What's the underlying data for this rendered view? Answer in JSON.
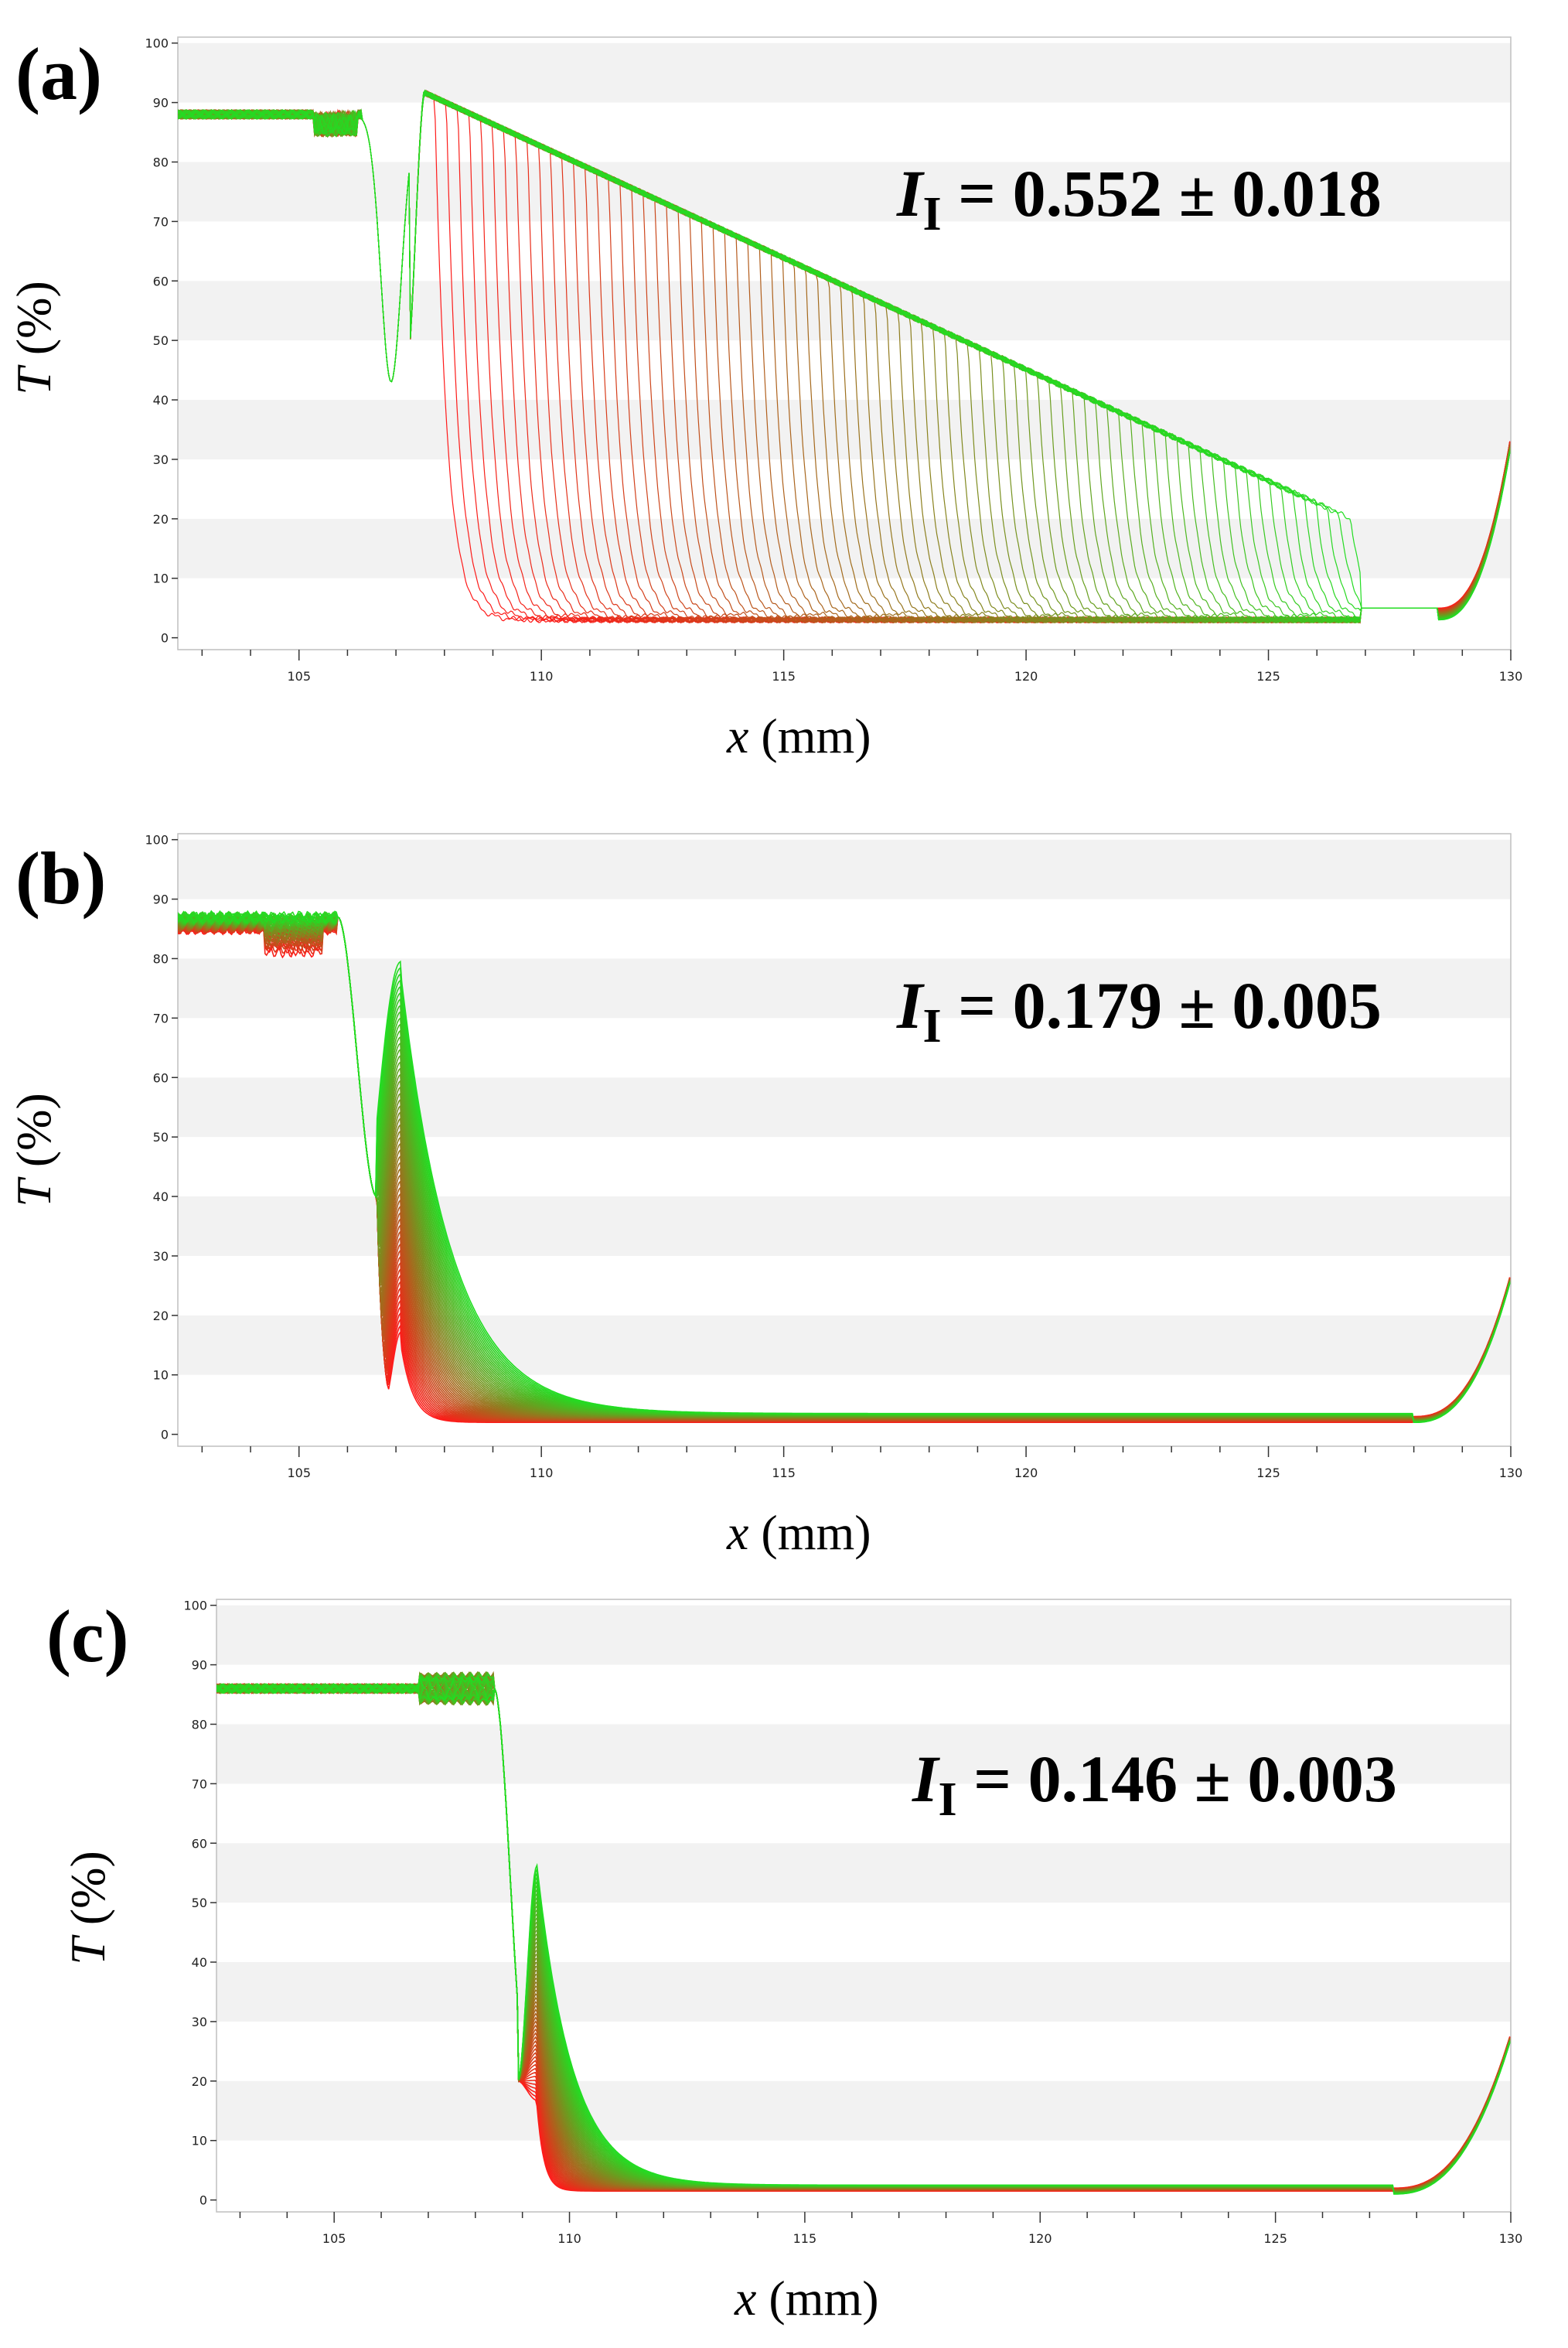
{
  "chart_data": [
    {
      "type": "line",
      "panel": "(a)",
      "xlabel_var": "x",
      "xlabel_unit": "(mm)",
      "ylabel_var": "T",
      "ylabel_unit": "(%)",
      "xlim": [
        102.5,
        130
      ],
      "ylim": [
        -2,
        101
      ],
      "xticks": [
        105,
        110,
        115,
        120,
        125,
        130
      ],
      "yticks": [
        0,
        10,
        20,
        30,
        40,
        50,
        60,
        70,
        80,
        90,
        100
      ],
      "annotation_symbol": "I",
      "annotation_sub": "I",
      "annotation_value": "= 0.552 ± 0.018",
      "series_count": 80,
      "color_start": "#ff1a1a",
      "color_end": "#22dd22",
      "profile": {
        "plateau": 88,
        "dip_x": 106.9,
        "dip_min": 43,
        "front_start_x": 107.6,
        "front_end_x": 126.7,
        "peak": 92,
        "tail_level": 20,
        "baseline": 3,
        "rise_start_x": 128.5,
        "end_value": 34
      }
    },
    {
      "type": "line",
      "panel": "(b)",
      "xlabel_var": "x",
      "xlabel_unit": "(mm)",
      "ylabel_var": "T",
      "ylabel_unit": "(%)",
      "xlim": [
        102.5,
        130
      ],
      "ylim": [
        -2,
        101
      ],
      "xticks": [
        105,
        110,
        115,
        120,
        125,
        130
      ],
      "yticks": [
        0,
        10,
        20,
        30,
        40,
        50,
        60,
        70,
        80,
        90,
        100
      ],
      "annotation_symbol": "I",
      "annotation_sub": "I",
      "annotation_value": "= 0.179 ± 0.005",
      "series_count": 60,
      "color_start": "#ff1a1a",
      "color_end": "#22dd22",
      "profile": {
        "plateau": 87,
        "drop_x": 105.8,
        "peak_x": 107.1,
        "peak": 76,
        "baseline": 2,
        "rise_start_x": 128.0,
        "end_value": 27
      }
    },
    {
      "type": "line",
      "panel": "(c)",
      "xlabel_var": "x",
      "xlabel_unit": "(mm)",
      "ylabel_var": "T",
      "ylabel_unit": "(%)",
      "xlim": [
        102.5,
        130
      ],
      "ylim": [
        -2,
        101
      ],
      "xticks": [
        105,
        110,
        115,
        120,
        125,
        130
      ],
      "yticks": [
        0,
        10,
        20,
        30,
        40,
        50,
        60,
        70,
        80,
        90,
        100
      ],
      "annotation_symbol": "I",
      "annotation_sub": "I",
      "annotation_value": "= 0.146 ± 0.003",
      "series_count": 60,
      "color_start": "#ff1a1a",
      "color_end": "#22dd22",
      "profile": {
        "plateau": 86,
        "drop_x": 108.4,
        "peak_x": 109.3,
        "peak": 56,
        "baseline": 1.5,
        "rise_start_x": 127.5,
        "end_value": 28
      }
    }
  ]
}
